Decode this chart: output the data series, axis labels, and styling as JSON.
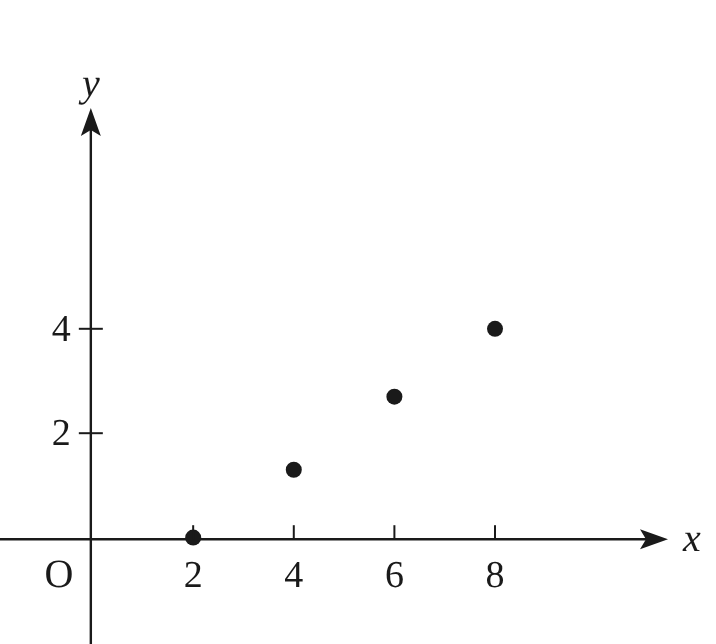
{
  "chart_data": {
    "type": "scatter",
    "xlabel": "x",
    "ylabel": "y",
    "x": [
      2,
      4,
      6,
      8
    ],
    "values": [
      0,
      1.3,
      2.7,
      4
    ],
    "color": "#1a1a1a",
    "marker": "circle",
    "xlim": [
      -1.8,
      11.2
    ],
    "ylim": [
      -2,
      8
    ],
    "xticks": [
      2,
      4,
      6,
      8
    ],
    "yticks": [
      2,
      4
    ],
    "grid": false,
    "legend": false,
    "annotations": [
      "O"
    ]
  }
}
